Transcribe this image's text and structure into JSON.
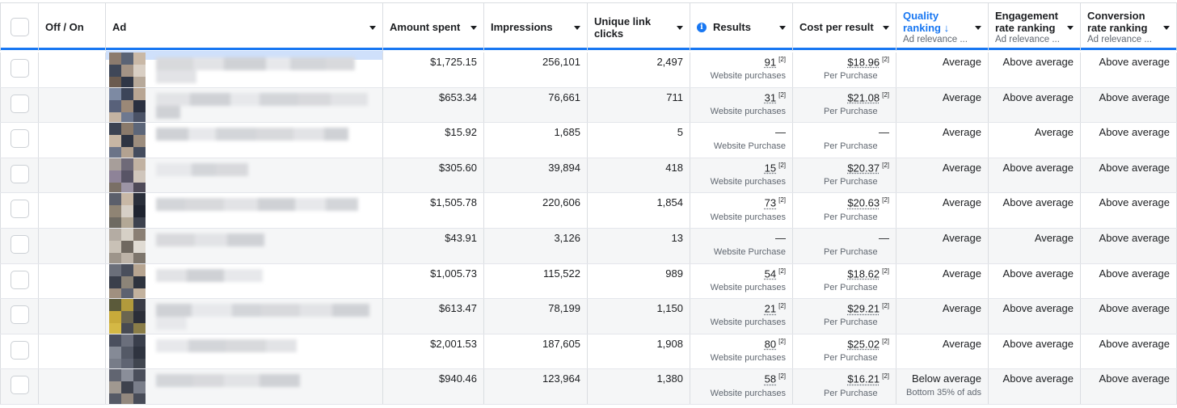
{
  "columns": {
    "off_on": "Off / On",
    "ad": "Ad",
    "amount_spent": "Amount spent",
    "impressions": "Impressions",
    "unique_link_clicks": "Unique link clicks",
    "results": "Results",
    "cost_per_result": "Cost per result",
    "quality_ranking": "Quality ranking",
    "quality_ranking_arrow": "↓",
    "quality_ranking_sub": "Ad relevance ...",
    "engagement_ranking": "Engagement rate ranking",
    "engagement_ranking_sub": "Ad relevance ...",
    "conversion_ranking": "Conversion rate ranking",
    "conversion_ranking_sub": "Ad relevance ..."
  },
  "icons": {
    "info": "info-icon",
    "sort": "arrow-down-icon",
    "dropdown": "caret-down-icon"
  },
  "colors": {
    "accent": "#1877f2"
  },
  "rows": [
    {
      "amount": "$1,725.15",
      "impressions": "256,101",
      "clicks": "2,497",
      "results": "91",
      "results_fn": "[2]",
      "results_label": "Website purchases",
      "cost": "$18.96",
      "cost_fn": "[2]",
      "cost_label": "Per Purchase",
      "quality": "Average",
      "quality_sub": "",
      "engagement": "Above average",
      "conversion": "Above average"
    },
    {
      "amount": "$653.34",
      "impressions": "76,661",
      "clicks": "711",
      "results": "31",
      "results_fn": "[2]",
      "results_label": "Website purchases",
      "cost": "$21.08",
      "cost_fn": "[2]",
      "cost_label": "Per Purchase",
      "quality": "Average",
      "quality_sub": "",
      "engagement": "Above average",
      "conversion": "Above average"
    },
    {
      "amount": "$15.92",
      "impressions": "1,685",
      "clicks": "5",
      "results": "—",
      "results_fn": "",
      "results_label": "Website Purchase",
      "cost": "—",
      "cost_fn": "",
      "cost_label": "Per Purchase",
      "quality": "Average",
      "quality_sub": "",
      "engagement": "Average",
      "conversion": "Above average"
    },
    {
      "amount": "$305.60",
      "impressions": "39,894",
      "clicks": "418",
      "results": "15",
      "results_fn": "[2]",
      "results_label": "Website purchases",
      "cost": "$20.37",
      "cost_fn": "[2]",
      "cost_label": "Per Purchase",
      "quality": "Average",
      "quality_sub": "",
      "engagement": "Above average",
      "conversion": "Above average"
    },
    {
      "amount": "$1,505.78",
      "impressions": "220,606",
      "clicks": "1,854",
      "results": "73",
      "results_fn": "[2]",
      "results_label": "Website purchases",
      "cost": "$20.63",
      "cost_fn": "[2]",
      "cost_label": "Per Purchase",
      "quality": "Average",
      "quality_sub": "",
      "engagement": "Above average",
      "conversion": "Above average"
    },
    {
      "amount": "$43.91",
      "impressions": "3,126",
      "clicks": "13",
      "results": "—",
      "results_fn": "",
      "results_label": "Website Purchase",
      "cost": "—",
      "cost_fn": "",
      "cost_label": "Per Purchase",
      "quality": "Average",
      "quality_sub": "",
      "engagement": "Average",
      "conversion": "Above average"
    },
    {
      "amount": "$1,005.73",
      "impressions": "115,522",
      "clicks": "989",
      "results": "54",
      "results_fn": "[2]",
      "results_label": "Website purchases",
      "cost": "$18.62",
      "cost_fn": "[2]",
      "cost_label": "Per Purchase",
      "quality": "Average",
      "quality_sub": "",
      "engagement": "Above average",
      "conversion": "Above average"
    },
    {
      "amount": "$613.47",
      "impressions": "78,199",
      "clicks": "1,150",
      "results": "21",
      "results_fn": "[2]",
      "results_label": "Website purchases",
      "cost": "$29.21",
      "cost_fn": "[2]",
      "cost_label": "Per Purchase",
      "quality": "Average",
      "quality_sub": "",
      "engagement": "Above average",
      "conversion": "Above average"
    },
    {
      "amount": "$2,001.53",
      "impressions": "187,605",
      "clicks": "1,908",
      "results": "80",
      "results_fn": "[2]",
      "results_label": "Website purchases",
      "cost": "$25.02",
      "cost_fn": "[2]",
      "cost_label": "Per Purchase",
      "quality": "Average",
      "quality_sub": "",
      "engagement": "Above average",
      "conversion": "Above average"
    },
    {
      "amount": "$940.46",
      "impressions": "123,964",
      "clicks": "1,380",
      "results": "58",
      "results_fn": "[2]",
      "results_label": "Website purchases",
      "cost": "$16.21",
      "cost_fn": "[2]",
      "cost_label": "Per Purchase",
      "quality": "Below average",
      "quality_sub": "Bottom 35% of ads",
      "engagement": "Above average",
      "conversion": "Above average"
    }
  ]
}
